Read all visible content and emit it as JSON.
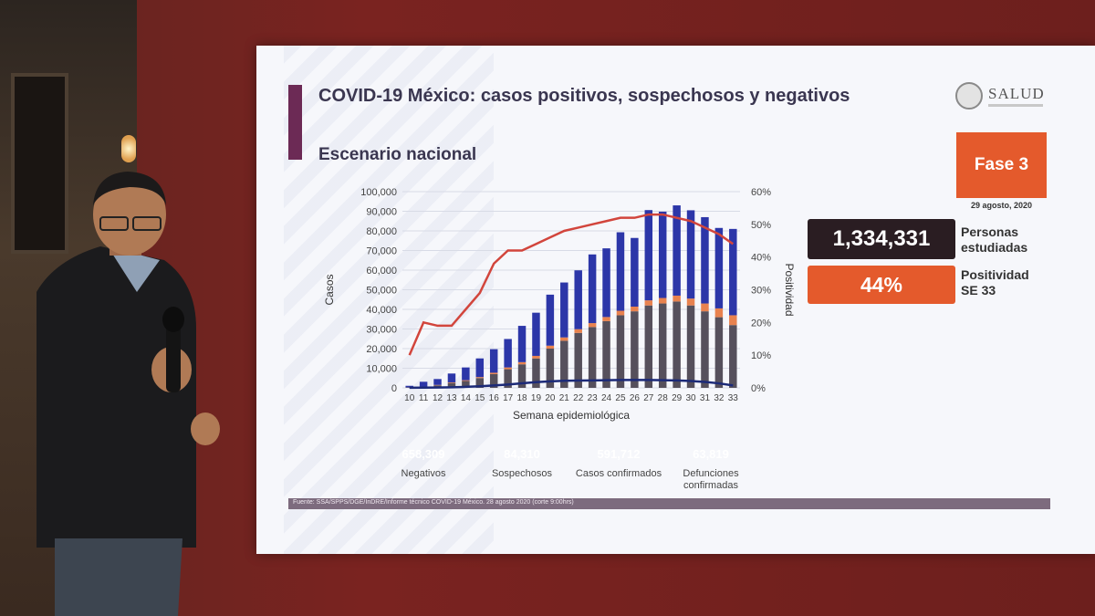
{
  "slide": {
    "title": "COVID-19 México: casos positivos, sospechosos y negativos",
    "subtitle": "Escenario nacional",
    "logo_text": "SALUD",
    "phase": "Fase 3",
    "phase_date": "29 agosto, 2020",
    "studied_value": "1,334,331",
    "studied_label_1": "Personas",
    "studied_label_2": "estudiadas",
    "positivity_value": "44%",
    "positivity_label_1": "Positividad",
    "positivity_label_2": "SE 33",
    "footer": "Fuente: SSA/SPPS/DGE/InDRE/Informe técnico COVID-19 México. 28 agosto 2020 (corte 9:00hrs)"
  },
  "badges": [
    {
      "value": "658,309",
      "label": "Negativos",
      "color": "#2c36a8"
    },
    {
      "value": "84,310",
      "label": "Sospechosos",
      "color": "#e8824f"
    },
    {
      "value": "591,712",
      "label": "Casos confirmados",
      "color": "#56505c"
    },
    {
      "value": "63,819",
      "label": "Defunciones confirmadas",
      "color": "#1c2a78"
    }
  ],
  "chart_data": {
    "type": "bar",
    "xlabel": "Semana epidemiológica",
    "ylabel": "Casos",
    "y2label": "Positividad",
    "ylim": [
      0,
      100000
    ],
    "y2lim": [
      0,
      60
    ],
    "yticks": [
      "0",
      "10,000",
      "20,000",
      "30,000",
      "40,000",
      "50,000",
      "60,000",
      "70,000",
      "80,000",
      "90,000",
      "100,000"
    ],
    "y2ticks": [
      "0%",
      "10%",
      "20%",
      "30%",
      "40%",
      "50%",
      "60%"
    ],
    "categories": [
      "10",
      "11",
      "12",
      "13",
      "14",
      "15",
      "16",
      "17",
      "18",
      "19",
      "20",
      "21",
      "22",
      "23",
      "24",
      "25",
      "26",
      "27",
      "28",
      "29",
      "30",
      "31",
      "32",
      "33"
    ],
    "series": [
      {
        "name": "Casos confirmados",
        "color": "#56505c",
        "values": [
          200,
          500,
          1300,
          2500,
          3500,
          5000,
          7000,
          9500,
          12000,
          15000,
          20000,
          24000,
          28000,
          31000,
          34000,
          37000,
          39000,
          42000,
          43000,
          44000,
          42000,
          39000,
          36000,
          32000
        ]
      },
      {
        "name": "Sospechosos",
        "color": "#e8824f",
        "values": [
          50,
          100,
          200,
          300,
          400,
          500,
          700,
          900,
          1100,
          1300,
          1500,
          1700,
          1900,
          2000,
          2100,
          2300,
          2400,
          2600,
          2800,
          3000,
          3500,
          4000,
          4500,
          5000
        ]
      },
      {
        "name": "Negativos",
        "color": "#2c36a8",
        "values": [
          800,
          2500,
          3000,
          4500,
          6500,
          9500,
          12000,
          14500,
          18500,
          22000,
          26000,
          28000,
          30000,
          35000,
          35000,
          40000,
          35000,
          46000,
          44000,
          46000,
          45000,
          44000,
          41000,
          44000
        ]
      }
    ],
    "line_series": [
      {
        "name": "Positividad",
        "color": "#d2453c",
        "axis": "y2",
        "values": [
          10,
          20,
          19,
          19,
          24,
          29,
          38,
          42,
          42,
          44,
          46,
          48,
          49,
          50,
          51,
          52,
          52,
          53,
          53,
          52,
          51,
          49,
          47,
          44
        ]
      },
      {
        "name": "Defunciones",
        "color": "#1c2a78",
        "axis": "y",
        "values": [
          50,
          100,
          200,
          300,
          500,
          800,
          1200,
          1700,
          2300,
          2900,
          3300,
          3600,
          3700,
          3800,
          3900,
          4000,
          4000,
          4000,
          3900,
          3800,
          3500,
          3000,
          2300,
          1200
        ]
      }
    ],
    "grid": true
  }
}
